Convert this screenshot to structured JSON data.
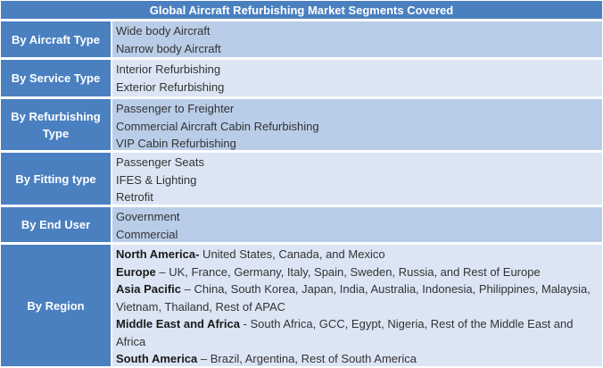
{
  "title": "Global Aircraft Refurbishing Market Segments Covered",
  "segments": [
    {
      "category": "By Aircraft Type",
      "items": [
        "Wide body Aircraft",
        "Narrow body Aircraft"
      ]
    },
    {
      "category": "By Service Type",
      "items": [
        "Interior Refurbishing",
        "Exterior Refurbishing"
      ]
    },
    {
      "category": "By Refurbishing Type",
      "items": [
        "Passenger to Freighter",
        "Commercial Aircraft Cabin Refurbishing",
        "VIP Cabin Refurbishing"
      ]
    },
    {
      "category": "By Fitting type",
      "items": [
        "Passenger Seats",
        "IFES & Lighting",
        "Retrofit"
      ]
    },
    {
      "category": "By End User",
      "items": [
        "Government",
        "Commercial"
      ]
    },
    {
      "category": "By Region",
      "regions": [
        {
          "name": "North America-",
          "list": " United States, Canada, and Mexico"
        },
        {
          "name": "Europe",
          "list": " – UK, France, Germany, Italy, Spain, Sweden, Russia, and Rest of Europe"
        },
        {
          "name": "Asia Pacific",
          "list": " – China, South Korea, Japan, India, Australia, Indonesia, Philippines, Malaysia, Vietnam, Thailand, Rest of APAC"
        },
        {
          "name": "Middle East and Africa",
          "list": " - South Africa, GCC, Egypt, Nigeria, Rest of the Middle East and Africa"
        },
        {
          "name": "South America",
          "list": " – Brazil, Argentina, Rest of South America"
        }
      ]
    }
  ]
}
